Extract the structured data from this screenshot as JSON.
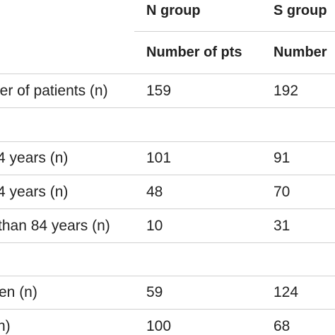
{
  "header": {
    "group_n": "N group",
    "group_s": "S group",
    "sub_n": "Number of pts",
    "sub_s": "Number"
  },
  "rows": [
    {
      "label": "ber of patients (n)",
      "n": "159",
      "s": "192"
    },
    {
      "label": "",
      "n": "",
      "s": ""
    },
    {
      "label": "4 years (n)",
      "n": "101",
      "s": "91"
    },
    {
      "label": "4 years (n)",
      "n": "48",
      "s": "70"
    },
    {
      "label": "than 84 years (n)",
      "n": "10",
      "s": "31"
    },
    {
      "label": "",
      "n": "",
      "s": ""
    },
    {
      "label": "en (n)",
      "n": "59",
      "s": "124"
    },
    {
      "label": "n)",
      "n": "100",
      "s": "68"
    }
  ]
}
